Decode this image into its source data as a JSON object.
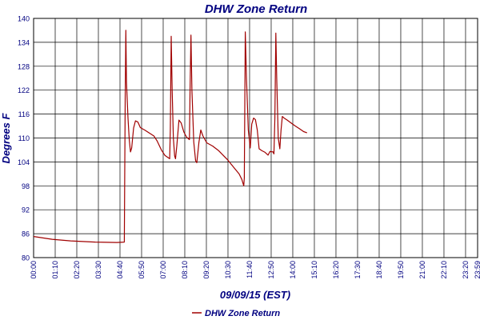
{
  "chart_data": {
    "type": "line",
    "title": "DHW Zone Return",
    "xlabel": "09/09/15 (EST)",
    "ylabel": "Degrees F",
    "ylim": [
      80,
      140
    ],
    "y_ticks": [
      80,
      86,
      92,
      98,
      104,
      110,
      116,
      122,
      128,
      134,
      140
    ],
    "x_unit": "minutes since 00:00 on 09/09/15",
    "x_ticks": [
      "00:00",
      "01:10",
      "02:20",
      "03:30",
      "04:40",
      "05:50",
      "07:00",
      "08:10",
      "09:20",
      "10:30",
      "11:40",
      "12:50",
      "14:00",
      "15:10",
      "16:20",
      "17:30",
      "18:40",
      "19:50",
      "21:00",
      "22:10",
      "23:20",
      "23:59"
    ],
    "grid": true,
    "legend_position": "bottom-center",
    "series": [
      {
        "name": "DHW Zone Return",
        "color": "#a00000",
        "points": [
          [
            0,
            85.3
          ],
          [
            60,
            84.6
          ],
          [
            120,
            84.2
          ],
          [
            200,
            83.9
          ],
          [
            270,
            83.8
          ],
          [
            294,
            83.9
          ],
          [
            297,
            120
          ],
          [
            299,
            137
          ],
          [
            301,
            124
          ],
          [
            306,
            115
          ],
          [
            310,
            109.5
          ],
          [
            314,
            106.5
          ],
          [
            318,
            107.5
          ],
          [
            324,
            112.5
          ],
          [
            330,
            114.3
          ],
          [
            338,
            114
          ],
          [
            346,
            112.6
          ],
          [
            360,
            112
          ],
          [
            376,
            111.2
          ],
          [
            390,
            110.5
          ],
          [
            400,
            109.3
          ],
          [
            414,
            107
          ],
          [
            426,
            105.6
          ],
          [
            441,
            104.8
          ],
          [
            443,
            112
          ],
          [
            446,
            135.5
          ],
          [
            449,
            122
          ],
          [
            453,
            110
          ],
          [
            457,
            105.5
          ],
          [
            460,
            104.8
          ],
          [
            464,
            108
          ],
          [
            471,
            114.5
          ],
          [
            478,
            113.8
          ],
          [
            487,
            111.5
          ],
          [
            496,
            110.2
          ],
          [
            505,
            109.6
          ],
          [
            507,
            121
          ],
          [
            510,
            135.8
          ],
          [
            513,
            122
          ],
          [
            519,
            109
          ],
          [
            525,
            104.3
          ],
          [
            529,
            103.8
          ],
          [
            536,
            109
          ],
          [
            542,
            112
          ],
          [
            549,
            110.5
          ],
          [
            561,
            108.8
          ],
          [
            580,
            108
          ],
          [
            600,
            106.8
          ],
          [
            628,
            104.6
          ],
          [
            650,
            102.5
          ],
          [
            666,
            101
          ],
          [
            675,
            99.6
          ],
          [
            681,
            98
          ],
          [
            683,
            100
          ],
          [
            686,
            136.6
          ],
          [
            690,
            125
          ],
          [
            696,
            112
          ],
          [
            702,
            107.5
          ],
          [
            707,
            113.5
          ],
          [
            713,
            115
          ],
          [
            719,
            114.6
          ],
          [
            725,
            112
          ],
          [
            731,
            107.3
          ],
          [
            740,
            106.8
          ],
          [
            750,
            106.4
          ],
          [
            760,
            105.7
          ],
          [
            766,
            106.6
          ],
          [
            776,
            106.5
          ],
          [
            779,
            106
          ],
          [
            782,
            115
          ],
          [
            785,
            136.3
          ],
          [
            788,
            125
          ],
          [
            793,
            110
          ],
          [
            798,
            107.3
          ],
          [
            802,
            112
          ],
          [
            806,
            115.4
          ],
          [
            812,
            115
          ],
          [
            822,
            114.5
          ],
          [
            834,
            113.8
          ],
          [
            848,
            113
          ],
          [
            862,
            112.3
          ],
          [
            875,
            111.6
          ],
          [
            886,
            111.3
          ]
        ]
      }
    ]
  }
}
